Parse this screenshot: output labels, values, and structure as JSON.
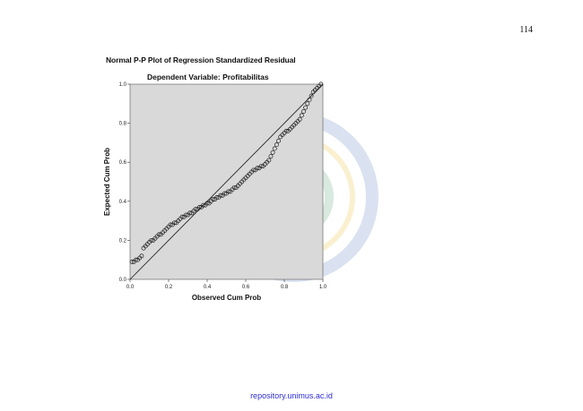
{
  "page_number": "114",
  "footer": {
    "repository": "repository.unimus.ac.id"
  },
  "chart_data": {
    "type": "scatter",
    "title": "Normal P-P Plot of Regression Standardized Residual",
    "subtitle": "Dependent Variable: Profitabilitas",
    "xlabel": "Observed Cum Prob",
    "ylabel": "Expected Cum Prob",
    "xlim": [
      0,
      1
    ],
    "ylim": [
      0,
      1
    ],
    "xticks": [
      "0.0",
      "0.2",
      "0.4",
      "0.6",
      "0.8",
      "1.0"
    ],
    "yticks": [
      "0.0",
      "0.2",
      "0.4",
      "0.6",
      "0.8",
      "1.0"
    ],
    "reference_line": [
      [
        0,
        0
      ],
      [
        1,
        1
      ]
    ],
    "grid": false,
    "colors": {
      "plot_bg": "#d9d9d9",
      "points": "#222222",
      "line": "#111111"
    },
    "points": [
      [
        0.01,
        0.09
      ],
      [
        0.02,
        0.09
      ],
      [
        0.03,
        0.1
      ],
      [
        0.04,
        0.1
      ],
      [
        0.05,
        0.11
      ],
      [
        0.06,
        0.12
      ],
      [
        0.07,
        0.16
      ],
      [
        0.08,
        0.17
      ],
      [
        0.09,
        0.18
      ],
      [
        0.1,
        0.19
      ],
      [
        0.11,
        0.2
      ],
      [
        0.12,
        0.2
      ],
      [
        0.13,
        0.21
      ],
      [
        0.14,
        0.22
      ],
      [
        0.15,
        0.23
      ],
      [
        0.16,
        0.23
      ],
      [
        0.17,
        0.24
      ],
      [
        0.18,
        0.25
      ],
      [
        0.19,
        0.26
      ],
      [
        0.2,
        0.27
      ],
      [
        0.21,
        0.28
      ],
      [
        0.22,
        0.28
      ],
      [
        0.23,
        0.29
      ],
      [
        0.24,
        0.29
      ],
      [
        0.25,
        0.3
      ],
      [
        0.26,
        0.31
      ],
      [
        0.27,
        0.32
      ],
      [
        0.28,
        0.32
      ],
      [
        0.29,
        0.33
      ],
      [
        0.3,
        0.33
      ],
      [
        0.31,
        0.34
      ],
      [
        0.32,
        0.34
      ],
      [
        0.33,
        0.35
      ],
      [
        0.34,
        0.36
      ],
      [
        0.35,
        0.36
      ],
      [
        0.36,
        0.37
      ],
      [
        0.37,
        0.37
      ],
      [
        0.38,
        0.38
      ],
      [
        0.39,
        0.38
      ],
      [
        0.4,
        0.39
      ],
      [
        0.41,
        0.39
      ],
      [
        0.42,
        0.4
      ],
      [
        0.43,
        0.41
      ],
      [
        0.44,
        0.41
      ],
      [
        0.45,
        0.42
      ],
      [
        0.46,
        0.42
      ],
      [
        0.47,
        0.43
      ],
      [
        0.48,
        0.43
      ],
      [
        0.49,
        0.44
      ],
      [
        0.5,
        0.44
      ],
      [
        0.51,
        0.45
      ],
      [
        0.52,
        0.45
      ],
      [
        0.53,
        0.46
      ],
      [
        0.54,
        0.47
      ],
      [
        0.55,
        0.47
      ],
      [
        0.56,
        0.48
      ],
      [
        0.57,
        0.49
      ],
      [
        0.58,
        0.5
      ],
      [
        0.59,
        0.51
      ],
      [
        0.6,
        0.52
      ],
      [
        0.61,
        0.53
      ],
      [
        0.62,
        0.54
      ],
      [
        0.63,
        0.55
      ],
      [
        0.64,
        0.56
      ],
      [
        0.65,
        0.56
      ],
      [
        0.66,
        0.57
      ],
      [
        0.67,
        0.57
      ],
      [
        0.68,
        0.58
      ],
      [
        0.69,
        0.58
      ],
      [
        0.7,
        0.59
      ],
      [
        0.71,
        0.6
      ],
      [
        0.72,
        0.61
      ],
      [
        0.73,
        0.63
      ],
      [
        0.74,
        0.65
      ],
      [
        0.75,
        0.67
      ],
      [
        0.76,
        0.69
      ],
      [
        0.77,
        0.71
      ],
      [
        0.78,
        0.73
      ],
      [
        0.79,
        0.74
      ],
      [
        0.8,
        0.75
      ],
      [
        0.81,
        0.76
      ],
      [
        0.82,
        0.76
      ],
      [
        0.83,
        0.77
      ],
      [
        0.84,
        0.78
      ],
      [
        0.85,
        0.79
      ],
      [
        0.86,
        0.8
      ],
      [
        0.87,
        0.81
      ],
      [
        0.88,
        0.82
      ],
      [
        0.89,
        0.84
      ],
      [
        0.9,
        0.86
      ],
      [
        0.91,
        0.88
      ],
      [
        0.92,
        0.9
      ],
      [
        0.93,
        0.92
      ],
      [
        0.94,
        0.94
      ],
      [
        0.95,
        0.96
      ],
      [
        0.96,
        0.97
      ],
      [
        0.97,
        0.98
      ],
      [
        0.98,
        0.99
      ],
      [
        0.99,
        1.0
      ]
    ]
  }
}
